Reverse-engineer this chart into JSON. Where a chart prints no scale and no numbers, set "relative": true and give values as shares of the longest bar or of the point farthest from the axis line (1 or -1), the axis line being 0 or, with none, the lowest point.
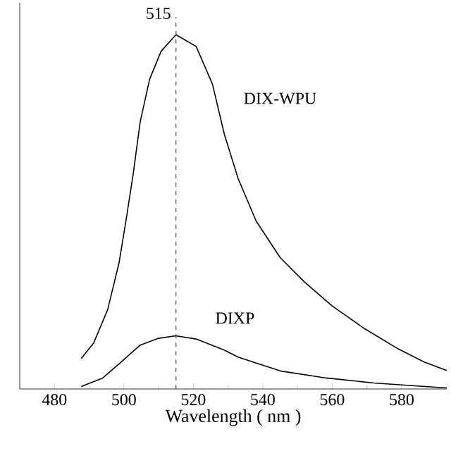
{
  "chart_data": {
    "type": "line",
    "xlabel": "Wavelength ( nm )",
    "relative": true,
    "xlim": [
      470,
      593
    ],
    "xticks": [
      480,
      500,
      520,
      540,
      560,
      580
    ],
    "ref_lines": [
      {
        "axis": "x",
        "value": 515,
        "label": "515",
        "line_style": "dashed"
      }
    ],
    "marker": "none",
    "line_style": "solid",
    "grid": false,
    "series": [
      {
        "name": "DIX-WPU",
        "color": "#000000",
        "x": [
          487.7,
          491.3,
          495.3,
          498.6,
          500.6,
          502.7,
          504.7,
          507.4,
          510.7,
          515,
          520.8,
          525.5,
          528.9,
          532.9,
          538.1,
          545,
          551.9,
          559.9,
          569.2,
          578.5,
          586.5,
          593
        ],
        "values": [
          0.086,
          0.13,
          0.223,
          0.356,
          0.475,
          0.608,
          0.754,
          0.874,
          0.953,
          1,
          0.967,
          0.861,
          0.72,
          0.594,
          0.474,
          0.371,
          0.303,
          0.235,
          0.171,
          0.116,
          0.076,
          0.052
        ]
      },
      {
        "name": "DIXP",
        "color": "#000000",
        "x": [
          487.7,
          493.9,
          499.3,
          504.7,
          510,
          515,
          520.8,
          528.9,
          532.9,
          545,
          558.3,
          572,
          585.3,
          593
        ],
        "values": [
          0.007,
          0.031,
          0.077,
          0.124,
          0.143,
          0.15,
          0.141,
          0.11,
          0.09,
          0.051,
          0.031,
          0.017,
          0.008,
          0.003
        ]
      }
    ]
  }
}
